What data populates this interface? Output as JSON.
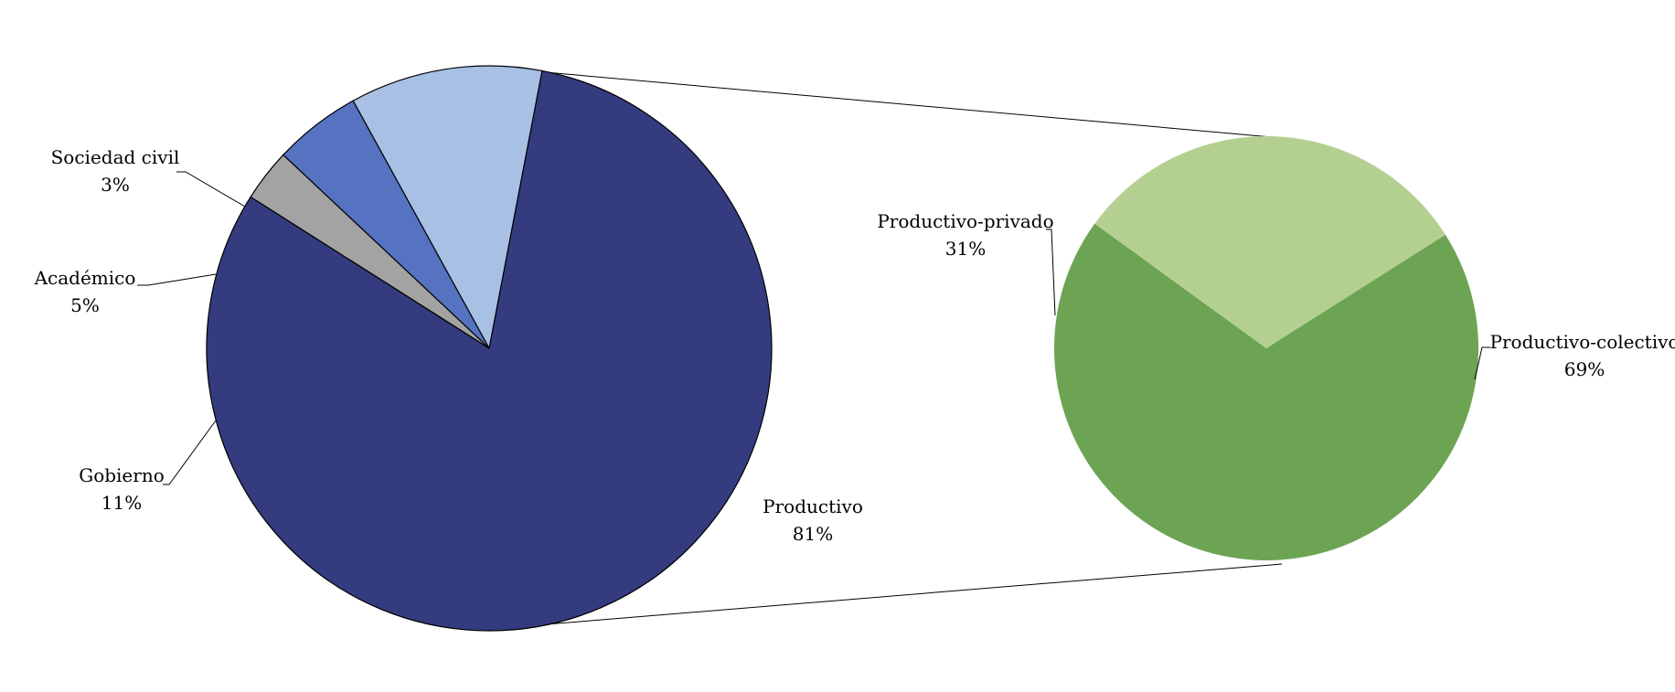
{
  "chart_data": [
    {
      "type": "pie",
      "slices": [
        {
          "name": "Productivo",
          "value": 81,
          "label": "81%",
          "color": "#343c7f"
        },
        {
          "name": "Gobierno",
          "value": 11,
          "label": "11%",
          "color": "#a7c0e3"
        },
        {
          "name": "Académico",
          "value": 5,
          "label": "5%",
          "color": "#5673c2"
        },
        {
          "name": "Sociedad civil",
          "value": 3,
          "label": "3%",
          "color": "#a3a3a3"
        }
      ]
    },
    {
      "type": "pie",
      "breakdown_of": "Productivo",
      "slices": [
        {
          "name": "Productivo-colectivo",
          "value": 69,
          "label": "69%",
          "color": "#6ca453"
        },
        {
          "name": "Productivo-privado",
          "value": 31,
          "label": "31%",
          "color": "#b4d091"
        }
      ]
    }
  ]
}
